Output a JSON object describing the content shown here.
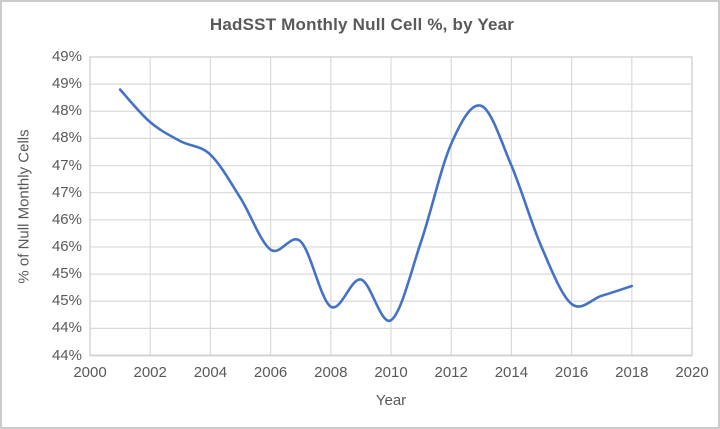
{
  "chart_data": {
    "type": "line",
    "title": "HadSST Monthly Null Cell %, by Year",
    "xlabel": "Year",
    "ylabel": "% of Null Monthly Cells",
    "smooth": true,
    "grid": true,
    "legend": false,
    "x": [
      2001,
      2002,
      2003,
      2004,
      2005,
      2006,
      2007,
      2008,
      2009,
      2010,
      2011,
      2012,
      2013,
      2014,
      2015,
      2016,
      2017,
      2018
    ],
    "values": [
      48.4,
      47.8,
      47.45,
      47.2,
      46.4,
      45.45,
      45.6,
      44.4,
      44.9,
      44.15,
      45.6,
      47.4,
      48.1,
      47.0,
      45.5,
      44.45,
      44.6,
      44.78
    ],
    "x_axis": {
      "min": 2000,
      "max": 2020,
      "tick_step": 2,
      "tick_labels": [
        "2000",
        "2002",
        "2004",
        "2006",
        "2008",
        "2010",
        "2012",
        "2014",
        "2016",
        "2018",
        "2020"
      ]
    },
    "y_axis": {
      "min": 43.5,
      "max": 49.0,
      "tick_step": 0.5,
      "tick_labels_top_to_bottom": [
        "49%",
        "49%",
        "48%",
        "48%",
        "47%",
        "47%",
        "46%",
        "46%",
        "45%",
        "45%",
        "44%",
        "44%"
      ]
    },
    "colors": {
      "line": "#4472C4",
      "gridline": "#DADADA",
      "plot_border": "#D0D0D0",
      "axis_line": "#BFBFBF",
      "text": "#595959"
    }
  }
}
